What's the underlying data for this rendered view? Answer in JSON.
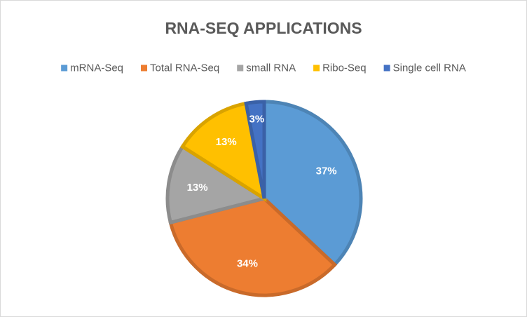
{
  "chart_data": {
    "type": "pie",
    "title": "RNA-SEQ APPLICATIONS",
    "categories": [
      "mRNA-Seq",
      "Total RNA-Seq",
      "small RNA",
      "Ribo-Seq",
      "Single cell RNA"
    ],
    "values": [
      37,
      34,
      13,
      13,
      3
    ],
    "value_labels": [
      "37%",
      "34%",
      "13%",
      "13%",
      "3%"
    ],
    "colors": [
      "#5b9bd5",
      "#ed7d31",
      "#a5a5a5",
      "#ffc000",
      "#4472c4"
    ],
    "legend": "top"
  }
}
